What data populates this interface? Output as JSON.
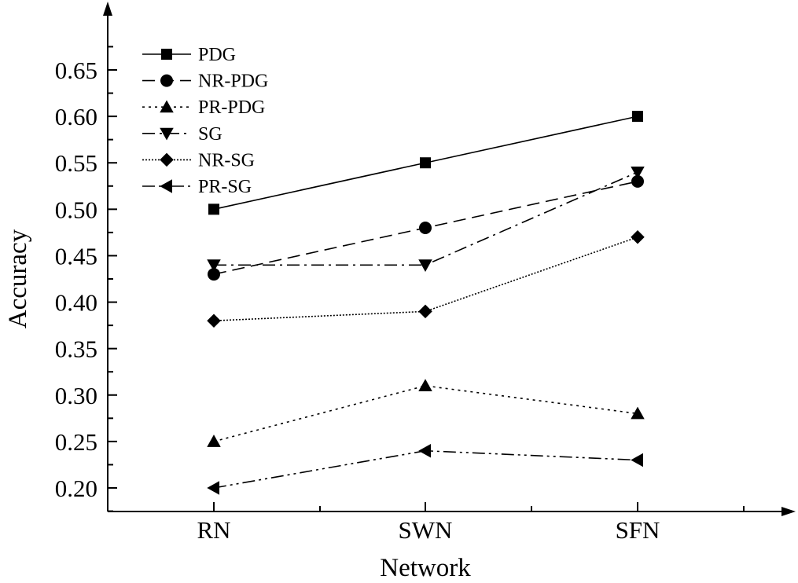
{
  "chart_data": {
    "type": "line",
    "title": "",
    "xlabel": "Network",
    "ylabel": "Accuracy",
    "categories": [
      "RN",
      "SWN",
      "SFN"
    ],
    "ylim": [
      0.175,
      0.7
    ],
    "yticks": [
      "0.20",
      "0.25",
      "0.30",
      "0.35",
      "0.40",
      "0.45",
      "0.50",
      "0.55",
      "0.60",
      "0.65"
    ],
    "legend_position": "top-left",
    "grid": false,
    "series": [
      {
        "name": "PDG",
        "values": [
          0.5,
          0.55,
          0.6
        ],
        "marker": "square",
        "dash": "solid"
      },
      {
        "name": "NR-PDG",
        "values": [
          0.43,
          0.48,
          0.53
        ],
        "marker": "circle",
        "dash": "dash"
      },
      {
        "name": "PR-PDG",
        "values": [
          0.25,
          0.31,
          0.28
        ],
        "marker": "triangle-up",
        "dash": "dot"
      },
      {
        "name": "SG",
        "values": [
          0.44,
          0.44,
          0.54
        ],
        "marker": "triangle-down",
        "dash": "dashdot"
      },
      {
        "name": "NR-SG",
        "values": [
          0.38,
          0.39,
          0.47
        ],
        "marker": "diamond",
        "dash": "shortdot"
      },
      {
        "name": "PR-SG",
        "values": [
          0.2,
          0.24,
          0.23
        ],
        "marker": "triangle-left",
        "dash": "dashdotdot"
      }
    ]
  }
}
